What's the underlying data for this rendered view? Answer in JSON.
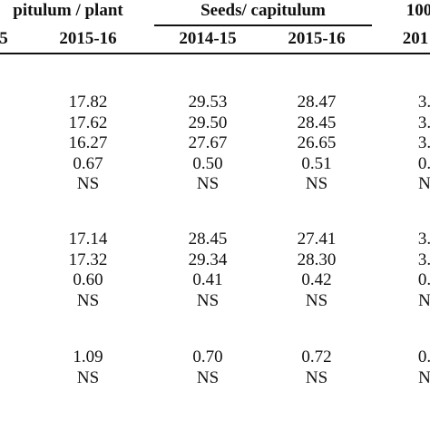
{
  "table": {
    "header": [
      "pitulum / plant",
      "Seeds/ capitulum",
      "100"
    ],
    "subheader": [
      "5",
      "2015-16",
      "2014-15",
      "2015-16",
      "201"
    ],
    "groups": [
      [
        [
          "17.82",
          "29.53",
          "28.47",
          "3."
        ],
        [
          "17.62",
          "29.50",
          "28.45",
          "3."
        ],
        [
          "16.27",
          "27.67",
          "26.65",
          "3."
        ],
        [
          "0.67",
          "0.50",
          "0.51",
          "0."
        ],
        [
          "NS",
          "NS",
          "NS",
          "N"
        ]
      ],
      [
        [
          "17.14",
          "28.45",
          "27.41",
          "3."
        ],
        [
          "17.32",
          "29.34",
          "28.30",
          "3."
        ],
        [
          "0.60",
          "0.41",
          "0.42",
          "0."
        ],
        [
          "NS",
          "NS",
          "NS",
          "N"
        ]
      ],
      [
        [
          "1.09",
          "0.70",
          "0.72",
          "0."
        ],
        [
          "NS",
          "NS",
          "NS",
          "N"
        ]
      ]
    ]
  }
}
